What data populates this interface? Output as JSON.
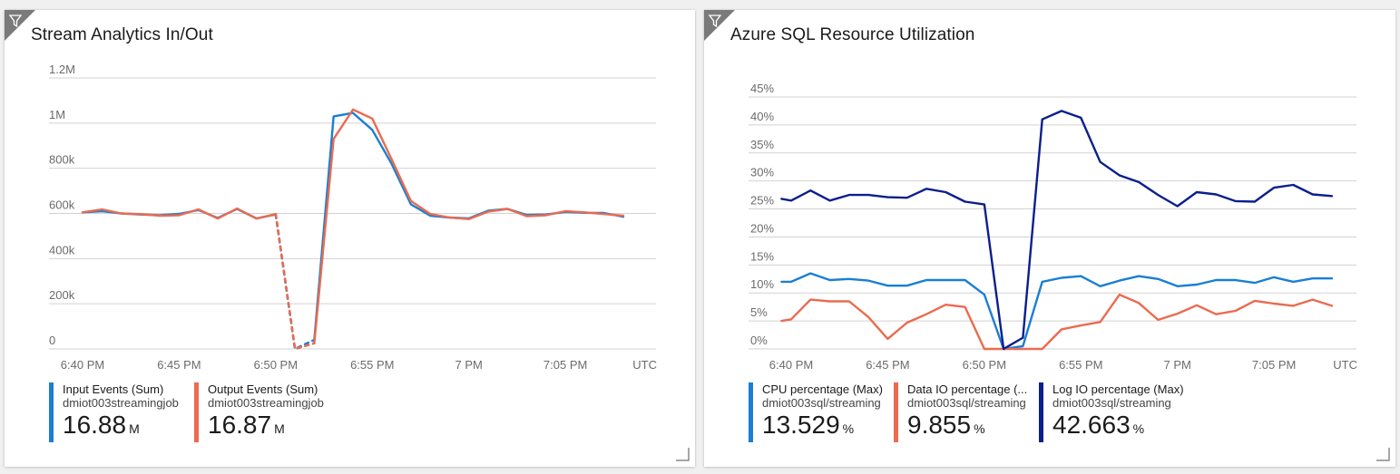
{
  "tiles": [
    {
      "id": "left",
      "title": "Stream Analytics In/Out",
      "legend": [
        {
          "name": "Input Events (Sum)",
          "source": "dmiot003streamingjob",
          "value": "16.88",
          "unit": "M",
          "color": "#1a7fd4"
        },
        {
          "name": "Output Events (Sum)",
          "source": "dmiot003streamingjob",
          "value": "16.87",
          "unit": "M",
          "color": "#ea6b50"
        }
      ]
    },
    {
      "id": "right",
      "title": "Azure SQL Resource Utilization",
      "legend": [
        {
          "name": "CPU percentage (Max)",
          "source": "dmiot003sql/streaming",
          "value": "13.529",
          "unit": "%",
          "color": "#1a7fd4"
        },
        {
          "name": "Data IO percentage (...",
          "source": "dmiot003sql/streaming",
          "value": "9.855",
          "unit": "%",
          "color": "#ea6b50"
        },
        {
          "name": "Log IO percentage (Max)",
          "source": "dmiot003sql/streaming",
          "value": "42.663",
          "unit": "%",
          "color": "#0b1f8c"
        }
      ]
    }
  ],
  "chart_data": [
    {
      "type": "line",
      "title": "Stream Analytics In/Out",
      "x_labels": [
        "6:40 PM",
        "6:45 PM",
        "6:50 PM",
        "6:55 PM",
        "7 PM",
        "7:05 PM"
      ],
      "x_tick_minutes": [
        0,
        5,
        10,
        15,
        20,
        25
      ],
      "x_suffix": "UTC",
      "x_range_minutes": [
        0,
        28
      ],
      "y_ticks": [
        "0",
        "200k",
        "400k",
        "600k",
        "800k",
        "1M",
        "1.2M"
      ],
      "y_tick_values": [
        0,
        200000,
        400000,
        600000,
        800000,
        1000000,
        1200000
      ],
      "ylim": [
        0,
        1200000
      ],
      "grid": true,
      "series": [
        {
          "name": "Input Events (Sum)",
          "color": "#1a7fd4",
          "x": [
            0,
            1,
            2,
            3,
            4,
            5,
            6,
            7,
            8,
            9,
            10,
            11,
            12,
            13,
            14,
            15,
            16,
            17,
            18,
            19,
            20,
            21,
            22,
            23,
            24,
            25,
            26,
            27,
            28
          ],
          "y": [
            605000,
            610000,
            600000,
            595000,
            592000,
            598000,
            615000,
            580000,
            620000,
            578000,
            595000,
            0,
            40000,
            1030000,
            1045000,
            970000,
            820000,
            640000,
            590000,
            582000,
            578000,
            612000,
            620000,
            593000,
            595000,
            607000,
            603000,
            602000,
            585000
          ],
          "dashed_segments": [
            [
              10,
              12
            ]
          ]
        },
        {
          "name": "Output Events (Sum)",
          "color": "#ea6b50",
          "x": [
            0,
            1,
            2,
            3,
            4,
            5,
            6,
            7,
            8,
            9,
            10,
            11,
            12,
            13,
            14,
            15,
            16,
            17,
            18,
            19,
            20,
            21,
            22,
            23,
            24,
            25,
            26,
            27,
            28
          ],
          "y": [
            605000,
            618000,
            600000,
            597000,
            590000,
            592000,
            618000,
            577000,
            622000,
            577000,
            597000,
            0,
            25000,
            930000,
            1060000,
            1020000,
            840000,
            655000,
            598000,
            582000,
            575000,
            608000,
            620000,
            588000,
            592000,
            610000,
            605000,
            597000,
            590000
          ],
          "dashed_segments": [
            [
              10,
              12
            ]
          ]
        }
      ]
    },
    {
      "type": "line",
      "title": "Azure SQL Resource Utilization",
      "x_labels": [
        "6:40 PM",
        "6:45 PM",
        "6:50 PM",
        "6:55 PM",
        "7 PM",
        "7:05 PM"
      ],
      "x_tick_minutes": [
        0,
        5,
        10,
        15,
        20,
        25
      ],
      "x_suffix": "UTC",
      "x_range_minutes": [
        0,
        28
      ],
      "y_ticks": [
        "0%",
        "5%",
        "10%",
        "15%",
        "20%",
        "25%",
        "30%",
        "35%",
        "40%",
        "45%"
      ],
      "y_tick_values": [
        0,
        5,
        10,
        15,
        20,
        25,
        30,
        35,
        40,
        45
      ],
      "ylim": [
        0,
        45
      ],
      "grid": true,
      "series": [
        {
          "name": "CPU percentage (Max)",
          "color": "#1a7fd4",
          "x": [
            -0.5,
            0,
            1,
            2,
            3,
            4,
            5,
            6,
            7,
            8,
            9,
            10,
            11,
            12,
            13,
            14,
            15,
            16,
            17,
            18,
            19,
            20,
            21,
            22,
            23,
            24,
            25,
            26,
            27,
            28
          ],
          "y": [
            12,
            12,
            13.5,
            12.3,
            12.5,
            12.2,
            11.3,
            11.3,
            12.3,
            12.3,
            12.3,
            9.7,
            0,
            0.5,
            12,
            12.7,
            13,
            11.2,
            12.2,
            13,
            12.5,
            11.2,
            11.5,
            12.3,
            12.3,
            11.8,
            12.8,
            12,
            12.6,
            12.6
          ],
          "dashed_segments": []
        },
        {
          "name": "Data IO percentage (...",
          "color": "#ea6b50",
          "x": [
            -0.5,
            0,
            1,
            2,
            3,
            4,
            5,
            6,
            7,
            8,
            9,
            10,
            11,
            12,
            13,
            14,
            15,
            16,
            17,
            18,
            19,
            20,
            21,
            22,
            23,
            24,
            25,
            26,
            27,
            28
          ],
          "y": [
            5,
            5.3,
            8.8,
            8.5,
            8.5,
            5.7,
            1.8,
            4.7,
            6.2,
            7.9,
            7.5,
            0,
            0,
            0,
            0,
            3.5,
            4.2,
            4.8,
            9.7,
            8.2,
            5.2,
            6.3,
            7.8,
            6.2,
            6.8,
            8.6,
            8.1,
            7.7,
            8.8,
            7.7
          ],
          "dashed_segments": []
        },
        {
          "name": "Log IO percentage (Max)",
          "color": "#0b1f8c",
          "x": [
            -0.5,
            0,
            1,
            2,
            3,
            4,
            5,
            6,
            7,
            8,
            9,
            10,
            11,
            12,
            13,
            14,
            15,
            16,
            17,
            18,
            19,
            20,
            21,
            22,
            23,
            24,
            25,
            26,
            27,
            28
          ],
          "y": [
            26.8,
            26.5,
            28.3,
            26.5,
            27.5,
            27.5,
            27.1,
            27,
            28.6,
            28,
            26.3,
            25.8,
            0,
            2,
            41,
            42.5,
            41.3,
            33.4,
            31,
            29.8,
            27.5,
            25.5,
            28,
            27.6,
            26.4,
            26.3,
            28.8,
            29.3,
            27.6,
            27.3
          ],
          "dashed_segments": []
        }
      ]
    }
  ]
}
